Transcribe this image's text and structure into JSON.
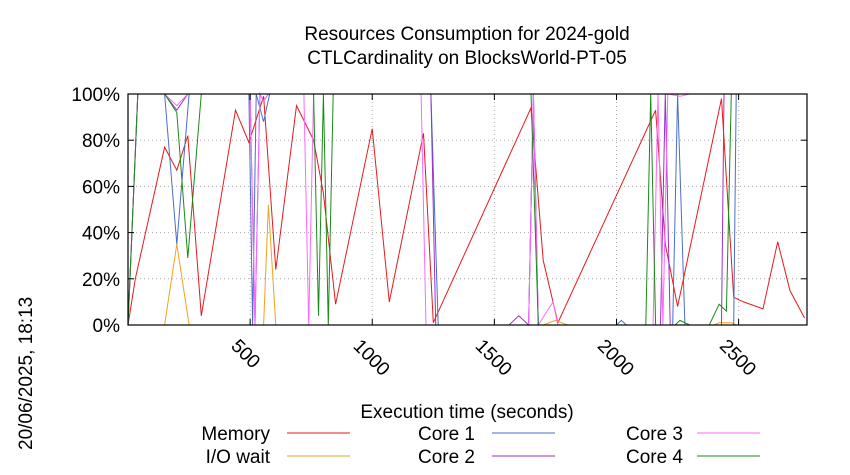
{
  "chart": {
    "title_line1": "Resources Consumption for 2024-gold",
    "title_line2": "CTLCardinality on BlocksWorld-PT-05",
    "xlabel": "Execution time (seconds)",
    "timestamp": "20/06/2025, 18:13"
  },
  "chart_data": {
    "type": "line",
    "title": "Resources Consumption for 2024-gold CTLCardinality on BlocksWorld-PT-05",
    "xlabel": "Execution time (seconds)",
    "ylabel": "",
    "xlim": [
      0,
      2780
    ],
    "ylim": [
      0,
      100
    ],
    "x_ticks": [
      500,
      1000,
      1500,
      2000,
      2500
    ],
    "x_tick_labels": [
      "500",
      "1000",
      "1500",
      "2000",
      "2500"
    ],
    "y_ticks": [
      0,
      20,
      40,
      60,
      80,
      100
    ],
    "y_tick_labels": [
      "0%",
      "20%",
      "40%",
      "60%",
      "80%",
      "100%"
    ],
    "grid": true,
    "legend_position": "bottom",
    "series": [
      {
        "name": "Memory",
        "color": "#e41a1c",
        "points": [
          [
            0,
            0
          ],
          [
            30,
            20
          ],
          [
            150,
            77
          ],
          [
            200,
            67
          ],
          [
            245,
            82
          ],
          [
            300,
            4
          ],
          [
            440,
            93
          ],
          [
            495,
            79
          ],
          [
            555,
            99
          ],
          [
            605,
            24
          ],
          [
            690,
            95
          ],
          [
            760,
            80
          ],
          [
            800,
            57
          ],
          [
            850,
            9
          ],
          [
            1000,
            85
          ],
          [
            1070,
            10
          ],
          [
            1210,
            83
          ],
          [
            1250,
            1
          ],
          [
            1650,
            94
          ],
          [
            1700,
            28
          ],
          [
            1760,
            1
          ],
          [
            2160,
            93
          ],
          [
            2200,
            35
          ],
          [
            2250,
            8
          ],
          [
            2430,
            98
          ],
          [
            2480,
            12
          ],
          [
            2520,
            10
          ],
          [
            2600,
            7
          ],
          [
            2660,
            36
          ],
          [
            2710,
            15
          ],
          [
            2770,
            3
          ]
        ]
      },
      {
        "name": "I/O wait",
        "color": "#f1a120",
        "points": [
          [
            0,
            0
          ],
          [
            150,
            0
          ],
          [
            200,
            35
          ],
          [
            250,
            0
          ],
          [
            555,
            0
          ],
          [
            575,
            52
          ],
          [
            605,
            0
          ],
          [
            1640,
            0
          ],
          [
            1700,
            0
          ],
          [
            1750,
            2
          ],
          [
            1800,
            0
          ],
          [
            2400,
            0
          ],
          [
            2420,
            1
          ],
          [
            2470,
            1
          ],
          [
            2490,
            0
          ]
        ]
      },
      {
        "name": "Core 1",
        "color": "#4a6ec9",
        "points": [
          [
            0,
            0
          ],
          [
            40,
            100
          ],
          [
            150,
            100
          ],
          [
            200,
            35
          ],
          [
            250,
            100
          ],
          [
            495,
            100
          ],
          [
            510,
            0
          ],
          [
            525,
            100
          ],
          [
            555,
            88
          ],
          [
            580,
            100
          ],
          [
            1240,
            100
          ],
          [
            1270,
            0
          ],
          [
            1400,
            0
          ],
          [
            1580,
            0
          ],
          [
            1640,
            0
          ],
          [
            1660,
            100
          ],
          [
            1680,
            0
          ],
          [
            2000,
            0
          ],
          [
            2020,
            2
          ],
          [
            2040,
            0
          ],
          [
            2230,
            0
          ],
          [
            2250,
            100
          ],
          [
            2280,
            0
          ],
          [
            2480,
            0
          ],
          [
            2490,
            100
          ],
          [
            2780,
            100
          ]
        ]
      },
      {
        "name": "Core 2",
        "color": "#9932cc",
        "points": [
          [
            0,
            0
          ],
          [
            40,
            100
          ],
          [
            150,
            100
          ],
          [
            200,
            93
          ],
          [
            245,
            100
          ],
          [
            500,
            100
          ],
          [
            520,
            0
          ],
          [
            540,
            100
          ],
          [
            555,
            97
          ],
          [
            575,
            100
          ],
          [
            1240,
            100
          ],
          [
            1260,
            0
          ],
          [
            1560,
            0
          ],
          [
            1600,
            4
          ],
          [
            1640,
            0
          ],
          [
            1660,
            100
          ],
          [
            1680,
            0
          ],
          [
            2180,
            0
          ],
          [
            2200,
            100
          ],
          [
            2220,
            0
          ],
          [
            2430,
            0
          ],
          [
            2440,
            100
          ],
          [
            2780,
            100
          ]
        ]
      },
      {
        "name": "Core 3",
        "color": "#ff66ff",
        "points": [
          [
            0,
            0
          ],
          [
            40,
            100
          ],
          [
            150,
            100
          ],
          [
            200,
            95
          ],
          [
            245,
            100
          ],
          [
            500,
            100
          ],
          [
            520,
            0
          ],
          [
            540,
            100
          ],
          [
            555,
            97
          ],
          [
            575,
            100
          ],
          [
            720,
            100
          ],
          [
            740,
            0
          ],
          [
            760,
            100
          ],
          [
            1200,
            100
          ],
          [
            1220,
            0
          ],
          [
            1640,
            0
          ],
          [
            1660,
            100
          ],
          [
            1680,
            0
          ],
          [
            1740,
            10
          ],
          [
            1760,
            0
          ],
          [
            2150,
            0
          ],
          [
            2170,
            100
          ],
          [
            2190,
            0
          ],
          [
            2210,
            100
          ],
          [
            2260,
            99
          ],
          [
            2300,
            100
          ],
          [
            2780,
            100
          ]
        ]
      },
      {
        "name": "Core 4",
        "color": "#1a8a1a",
        "points": [
          [
            0,
            0
          ],
          [
            40,
            100
          ],
          [
            150,
            100
          ],
          [
            200,
            92
          ],
          [
            245,
            29
          ],
          [
            300,
            100
          ],
          [
            760,
            100
          ],
          [
            780,
            4
          ],
          [
            800,
            100
          ],
          [
            820,
            0
          ],
          [
            840,
            100
          ],
          [
            1650,
            100
          ],
          [
            1680,
            0
          ],
          [
            2120,
            0
          ],
          [
            2140,
            100
          ],
          [
            2160,
            0
          ],
          [
            2240,
            0
          ],
          [
            2260,
            2
          ],
          [
            2300,
            0
          ],
          [
            2380,
            0
          ],
          [
            2420,
            9
          ],
          [
            2450,
            6
          ],
          [
            2470,
            100
          ],
          [
            2780,
            100
          ]
        ]
      }
    ]
  }
}
